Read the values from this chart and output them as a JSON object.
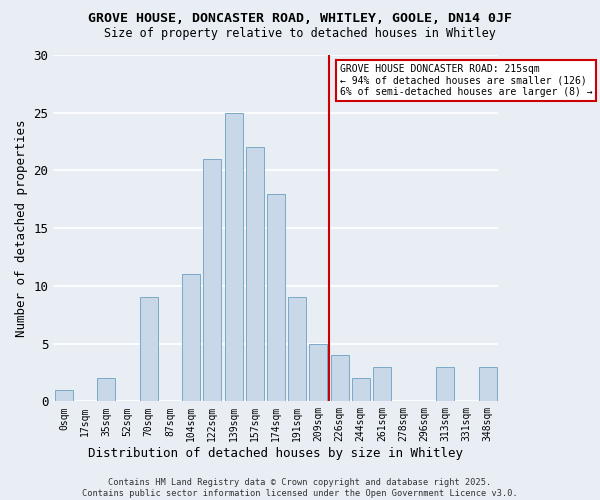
{
  "title": "GROVE HOUSE, DONCASTER ROAD, WHITLEY, GOOLE, DN14 0JF",
  "subtitle": "Size of property relative to detached houses in Whitley",
  "xlabel": "Distribution of detached houses by size in Whitley",
  "ylabel": "Number of detached properties",
  "bar_color": "#c8d8e8",
  "bar_edge_color": "#7aaac8",
  "background_color": "#e8eef4",
  "grid_color": "#ffffff",
  "bin_labels": [
    "0sqm",
    "17sqm",
    "35sqm",
    "52sqm",
    "70sqm",
    "87sqm",
    "104sqm",
    "122sqm",
    "139sqm",
    "157sqm",
    "174sqm",
    "191sqm",
    "209sqm",
    "226sqm",
    "244sqm",
    "261sqm",
    "278sqm",
    "296sqm",
    "313sqm",
    "331sqm",
    "348sqm"
  ],
  "bar_values": [
    1,
    0,
    2,
    0,
    9,
    0,
    11,
    21,
    25,
    22,
    18,
    9,
    5,
    4,
    2,
    3,
    0,
    0,
    3,
    0,
    3
  ],
  "vline_x": 12.5,
  "vline_color": "#cc0000",
  "annotation_title": "GROVE HOUSE DONCASTER ROAD: 215sqm",
  "annotation_line1": "← 94% of detached houses are smaller (126)",
  "annotation_line2": "6% of semi-detached houses are larger (8) →",
  "annotation_box_color": "#ffffff",
  "annotation_border_color": "#cc0000",
  "footer": "Contains HM Land Registry data © Crown copyright and database right 2025.\nContains public sector information licensed under the Open Government Licence v3.0.",
  "ylim": [
    0,
    30
  ],
  "yticks": [
    0,
    5,
    10,
    15,
    20,
    25,
    30
  ]
}
